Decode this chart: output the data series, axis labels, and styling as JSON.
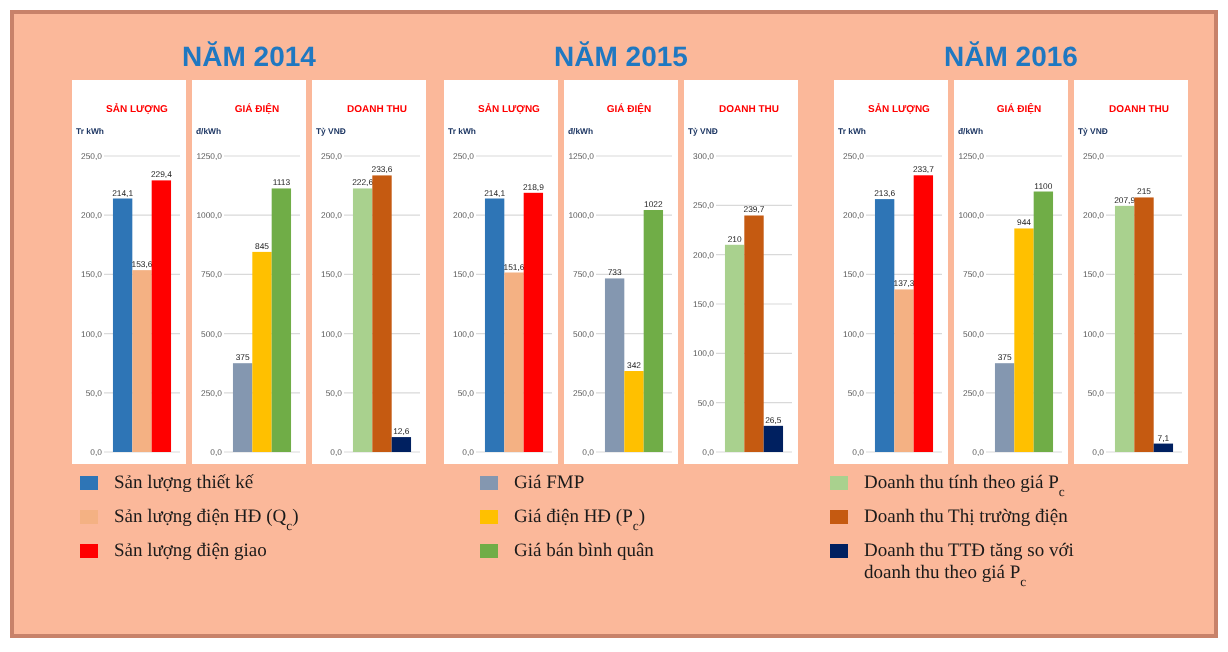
{
  "chart_data": [
    {
      "type": "bar",
      "title": "SẢN LƯỢNG",
      "ylabel": "Tr kWh",
      "categories": [
        null
      ],
      "legend": "bottom",
      "grid": "y",
      "ylim": [
        0,
        250
      ],
      "yticks": [
        {
          "value": 0,
          "label": "0,0"
        },
        {
          "value": 50,
          "label": "50,0"
        },
        {
          "value": 100,
          "label": "100,0"
        },
        {
          "value": 150,
          "label": "150,0"
        },
        {
          "value": 200,
          "label": "200,0"
        },
        {
          "value": 250,
          "label": "250,0"
        }
      ],
      "series": [
        {
          "name": "Sản lượng thiết kế",
          "color": "#2e75b6",
          "values": [
            214.1
          ],
          "value_labels": [
            "214,1"
          ]
        },
        {
          "name": "Sản lượng điện HĐ (Q$_{c}$)",
          "color": "#f4b183",
          "values": [
            153.6
          ],
          "value_labels": [
            "153,6"
          ]
        },
        {
          "name": "Sản lượng điện giao",
          "color": "#ff0000",
          "values": [
            229.4
          ],
          "value_labels": [
            "229,4"
          ]
        }
      ]
    },
    {
      "type": "bar",
      "subtitle": "NĂM 2014",
      "title": "GIÁ ĐIỆN",
      "ylabel": "đ/kWh",
      "categories": [
        null
      ],
      "legend": "bottom",
      "grid": "y",
      "ylim": [
        0,
        1250
      ],
      "yticks": [
        {
          "value": 0,
          "label": "0,0"
        },
        {
          "value": 250,
          "label": "250,0"
        },
        {
          "value": 500,
          "label": "500,0"
        },
        {
          "value": 750,
          "label": "750,0"
        },
        {
          "value": 1000,
          "label": "1000,0"
        },
        {
          "value": 1250,
          "label": "1250,0"
        }
      ],
      "series": [
        {
          "name": "Giá FMP",
          "color": "#8497b0",
          "values": [
            375
          ],
          "value_labels": [
            "375"
          ]
        },
        {
          "name": "Giá điện HĐ (P$_{c}$)",
          "color": "#ffc000",
          "values": [
            845
          ],
          "value_labels": [
            "845"
          ]
        },
        {
          "name": "Giá bán bình quân",
          "color": "#70ad47",
          "values": [
            1113
          ],
          "value_labels": [
            "1113"
          ]
        }
      ]
    },
    {
      "type": "bar",
      "title": "DOANH THU",
      "ylabel": "Tỷ VNĐ",
      "categories": [
        null
      ],
      "legend": "bottom",
      "grid": "y",
      "ylim": [
        0,
        250
      ],
      "yticks": [
        {
          "value": 0,
          "label": "0,0"
        },
        {
          "value": 50,
          "label": "50,0"
        },
        {
          "value": 100,
          "label": "100,0"
        },
        {
          "value": 150,
          "label": "150,0"
        },
        {
          "value": 200,
          "label": "200,0"
        },
        {
          "value": 250,
          "label": "250,0"
        }
      ],
      "series": [
        {
          "name": "Doanh thu tính theo giá P$_{c}$",
          "color": "#a9d18e",
          "values": [
            222.6
          ],
          "value_labels": [
            "222,6"
          ]
        },
        {
          "name": "Doanh thu Thị trường điện",
          "color": "#c55a11",
          "values": [
            233.6
          ],
          "value_labels": [
            "233,6"
          ]
        },
        {
          "name": "Doanh thu TTĐ tăng so với doanh thu theo giá P$_{c}$",
          "color": "#002060",
          "values": [
            12.6
          ],
          "value_labels": [
            "12,6"
          ]
        }
      ]
    },
    {
      "type": "bar",
      "title": "SẢN LƯỢNG",
      "ylabel": "Tr kWh",
      "categories": [
        null
      ],
      "grid": "y",
      "ylim": [
        0,
        250
      ],
      "yticks": [
        {
          "value": 0,
          "label": "0,0"
        },
        {
          "value": 50,
          "label": "50,0"
        },
        {
          "value": 100,
          "label": "100,0"
        },
        {
          "value": 150,
          "label": "150,0"
        },
        {
          "value": 200,
          "label": "200,0"
        },
        {
          "value": 250,
          "label": "250,0"
        }
      ],
      "series": [
        {
          "color": "#2e75b6",
          "values": [
            214.1
          ],
          "value_labels": [
            "214,1"
          ]
        },
        {
          "color": "#f4b183",
          "values": [
            151.6
          ],
          "value_labels": [
            "151,6"
          ]
        },
        {
          "color": "#ff0000",
          "values": [
            218.9
          ],
          "value_labels": [
            "218,9"
          ]
        }
      ]
    },
    {
      "type": "bar",
      "subtitle": "NĂM 2015",
      "title": "GIÁ ĐIỆN",
      "ylabel": "đ/kWh",
      "categories": [
        null
      ],
      "grid": "y",
      "ylim": [
        0,
        1250
      ],
      "yticks": [
        {
          "value": 0,
          "label": "0,0"
        },
        {
          "value": 250,
          "label": "250,0"
        },
        {
          "value": 500,
          "label": "500,0"
        },
        {
          "value": 750,
          "label": "750,0"
        },
        {
          "value": 1000,
          "label": "1000,0"
        },
        {
          "value": 1250,
          "label": "1250,0"
        }
      ],
      "series": [
        {
          "color": "#8497b0",
          "values": [
            733
          ],
          "value_labels": [
            "733"
          ]
        },
        {
          "color": "#ffc000",
          "values": [
            342
          ],
          "value_labels": [
            "342"
          ]
        },
        {
          "color": "#70ad47",
          "values": [
            1022
          ],
          "value_labels": [
            "1022"
          ]
        }
      ]
    },
    {
      "type": "bar",
      "title": "DOANH THU",
      "ylabel": "Tỷ VNĐ",
      "categories": [
        null
      ],
      "grid": "y",
      "ylim": [
        0,
        300
      ],
      "yticks": [
        {
          "value": 0,
          "label": "0,0"
        },
        {
          "value": 50,
          "label": "50,0"
        },
        {
          "value": 100,
          "label": "100,0"
        },
        {
          "value": 150,
          "label": "150,0"
        },
        {
          "value": 200,
          "label": "200,0"
        },
        {
          "value": 250,
          "label": "250,0"
        },
        {
          "value": 300,
          "label": "300,0"
        }
      ],
      "series": [
        {
          "color": "#a9d18e",
          "values": [
            210
          ],
          "value_labels": [
            "210"
          ]
        },
        {
          "color": "#c55a11",
          "values": [
            239.7
          ],
          "value_labels": [
            "239,7"
          ]
        },
        {
          "color": "#002060",
          "values": [
            26.5
          ],
          "value_labels": [
            "26,5"
          ]
        }
      ]
    },
    {
      "type": "bar",
      "title": "SẢN LƯỢNG",
      "ylabel": "Tr kWh",
      "categories": [
        null
      ],
      "grid": "y",
      "ylim": [
        0,
        250
      ],
      "yticks": [
        {
          "value": 0,
          "label": "0,0"
        },
        {
          "value": 50,
          "label": "50,0"
        },
        {
          "value": 100,
          "label": "100,0"
        },
        {
          "value": 150,
          "label": "150,0"
        },
        {
          "value": 200,
          "label": "200,0"
        },
        {
          "value": 250,
          "label": "250,0"
        }
      ],
      "series": [
        {
          "color": "#2e75b6",
          "values": [
            213.6
          ],
          "value_labels": [
            "213,6"
          ]
        },
        {
          "color": "#f4b183",
          "values": [
            137.3
          ],
          "value_labels": [
            "137,3"
          ]
        },
        {
          "color": "#ff0000",
          "values": [
            233.7
          ],
          "value_labels": [
            "233,7"
          ]
        }
      ]
    },
    {
      "type": "bar",
      "subtitle": "NĂM 2016",
      "title": "GIÁ ĐIỆN",
      "ylabel": "đ/kWh",
      "categories": [
        null
      ],
      "grid": "y",
      "ylim": [
        0,
        1250
      ],
      "yticks": [
        {
          "value": 0,
          "label": "0,0"
        },
        {
          "value": 250,
          "label": "250,0"
        },
        {
          "value": 500,
          "label": "500,0"
        },
        {
          "value": 750,
          "label": "750,0"
        },
        {
          "value": 1000,
          "label": "1000,0"
        },
        {
          "value": 1250,
          "label": "1250,0"
        }
      ],
      "series": [
        {
          "color": "#8497b0",
          "values": [
            375
          ],
          "value_labels": [
            "375"
          ]
        },
        {
          "color": "#ffc000",
          "values": [
            944
          ],
          "value_labels": [
            "944"
          ]
        },
        {
          "color": "#70ad47",
          "values": [
            1100
          ],
          "value_labels": [
            "1100"
          ]
        }
      ]
    },
    {
      "type": "bar",
      "title": "DOANH THU",
      "ylabel": "Tỷ VNĐ",
      "categories": [
        null
      ],
      "grid": "y",
      "ylim": [
        0,
        250
      ],
      "yticks": [
        {
          "value": 0,
          "label": "0,0"
        },
        {
          "value": 50,
          "label": "50,0"
        },
        {
          "value": 100,
          "label": "100,0"
        },
        {
          "value": 150,
          "label": "150,0"
        },
        {
          "value": 200,
          "label": "200,0"
        },
        {
          "value": 250,
          "label": "250,0"
        }
      ],
      "series": [
        {
          "color": "#a9d18e",
          "values": [
            207.9
          ],
          "value_labels": [
            "207,9"
          ]
        },
        {
          "color": "#c55a11",
          "values": [
            215
          ],
          "value_labels": [
            "215"
          ]
        },
        {
          "color": "#002060",
          "values": [
            7.1
          ],
          "value_labels": [
            "7,1"
          ]
        }
      ]
    }
  ]
}
